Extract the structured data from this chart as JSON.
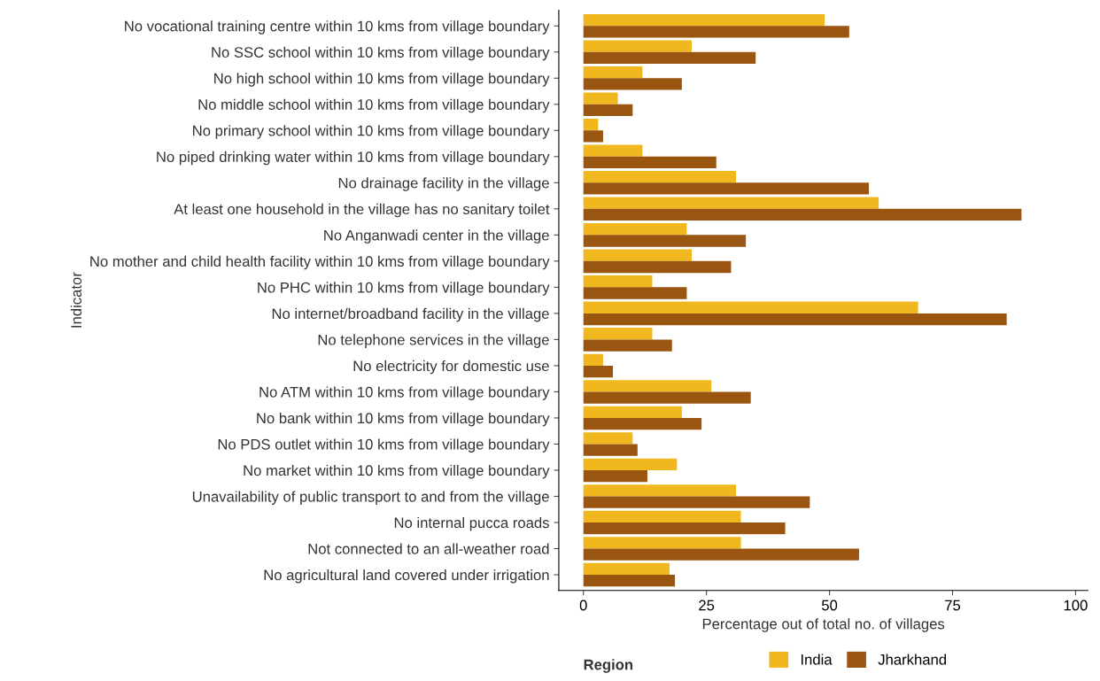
{
  "chart_data": {
    "type": "bar",
    "orientation": "horizontal",
    "xlabel": "Percentage out of total no. of villages",
    "ylabel": "Indicator",
    "legend_title": "Region",
    "legend": "bottom",
    "grid": false,
    "categories": [
      "No vocational training centre within 10 kms from village boundary",
      "No SSC school within 10 kms from village boundary",
      "No high school within 10 kms from village boundary",
      "No middle school within 10 kms from village boundary",
      "No primary school within 10 kms from village boundary",
      "No piped drinking water within 10 kms from village boundary",
      "No drainage facility in the village",
      "At least one household in the village has no sanitary toilet",
      "No Anganwadi center in the village",
      "No mother and child health facility within 10 kms from village boundary",
      "No PHC within 10 kms from village boundary",
      "No internet/broadband facility in the village",
      "No telephone services in the village",
      "No electricity for domestic use",
      "No ATM within 10 kms from village boundary",
      "No bank within 10 kms from village boundary",
      "No PDS outlet within 10 kms from village boundary",
      "No market within 10 kms from village boundary",
      "Unavailability of public transport to and from the village",
      "No internal pucca roads",
      "Not connected to an all-weather road",
      "No agricultural land covered under irrigation"
    ],
    "series": [
      {
        "name": "India",
        "color": "#f0b81e",
        "values": [
          49,
          22,
          12,
          7,
          3,
          12,
          31,
          60,
          21,
          22,
          14,
          68,
          14,
          4,
          26,
          20,
          10,
          19,
          31,
          32,
          32,
          17.5
        ]
      },
      {
        "name": "Jharkhand",
        "color": "#9a5510",
        "values": [
          54,
          35,
          20,
          10,
          4,
          27,
          58,
          89,
          33,
          30,
          21,
          86,
          18,
          6,
          34,
          24,
          11,
          13,
          46,
          41,
          56,
          18.6
        ]
      }
    ],
    "xlim": [
      -5,
      102.5
    ],
    "xticks": [
      0,
      25,
      50,
      75,
      100
    ]
  }
}
